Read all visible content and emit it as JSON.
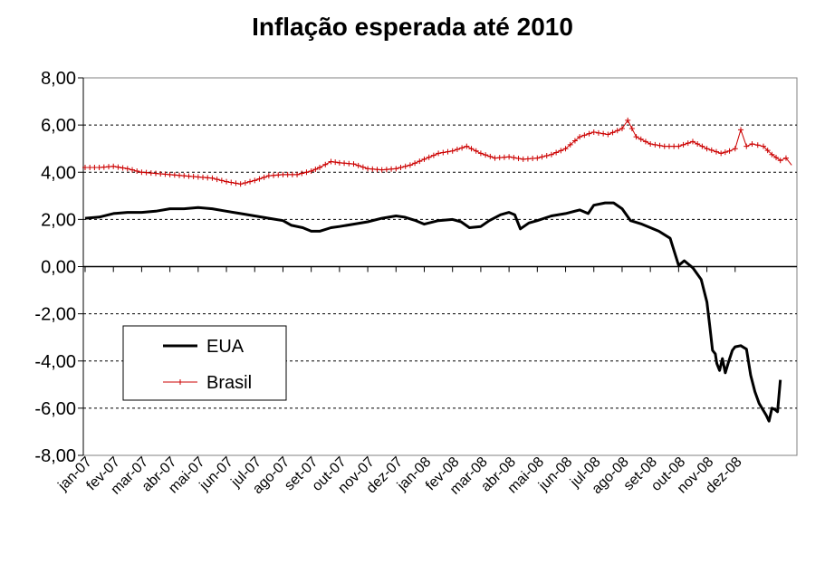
{
  "chart_data": {
    "type": "line",
    "title": "Inflação esperada até 2010",
    "xlabel": "",
    "ylabel": "",
    "ylim": [
      -8,
      8
    ],
    "y_ticks": [
      "8,00",
      "6,00",
      "4,00",
      "2,00",
      "0,00",
      "-2,00",
      "-4,00",
      "-6,00",
      "-8,00"
    ],
    "categories": [
      "jan-07",
      "fev-07",
      "mar-07",
      "abr-07",
      "mai-07",
      "jun-07",
      "jul-07",
      "ago-07",
      "set-07",
      "out-07",
      "nov-07",
      "dez-07",
      "jan-08",
      "fev-08",
      "mar-08",
      "abr-08",
      "mai-08",
      "jun-08",
      "jul-08",
      "ago-08",
      "set-08",
      "out-08",
      "nov-08",
      "dez-08"
    ],
    "grid": "horizontal dashed",
    "legend_position": "lower-left inside plot",
    "series": [
      {
        "name": "EUA",
        "color": "#000000",
        "style": "solid thick line",
        "points": [
          [
            0,
            2.05
          ],
          [
            0.5,
            2.1
          ],
          [
            1,
            2.25
          ],
          [
            1.5,
            2.3
          ],
          [
            2,
            2.3
          ],
          [
            2.5,
            2.35
          ],
          [
            3,
            2.45
          ],
          [
            3.5,
            2.45
          ],
          [
            4,
            2.5
          ],
          [
            4.5,
            2.45
          ],
          [
            5,
            2.35
          ],
          [
            5.5,
            2.25
          ],
          [
            6,
            2.15
          ],
          [
            6.5,
            2.05
          ],
          [
            7,
            1.95
          ],
          [
            7.3,
            1.75
          ],
          [
            7.7,
            1.65
          ],
          [
            8,
            1.5
          ],
          [
            8.3,
            1.5
          ],
          [
            8.7,
            1.65
          ],
          [
            9,
            1.7
          ],
          [
            9.5,
            1.8
          ],
          [
            10,
            1.9
          ],
          [
            10.5,
            2.05
          ],
          [
            11,
            2.15
          ],
          [
            11.3,
            2.1
          ],
          [
            11.7,
            1.95
          ],
          [
            12,
            1.8
          ],
          [
            12.5,
            1.95
          ],
          [
            13,
            2.0
          ],
          [
            13.3,
            1.9
          ],
          [
            13.6,
            1.65
          ],
          [
            14,
            1.7
          ],
          [
            14.3,
            1.95
          ],
          [
            14.7,
            2.2
          ],
          [
            15,
            2.3
          ],
          [
            15.2,
            2.2
          ],
          [
            15.4,
            1.6
          ],
          [
            15.7,
            1.85
          ],
          [
            16,
            1.95
          ],
          [
            16.5,
            2.15
          ],
          [
            17,
            2.25
          ],
          [
            17.5,
            2.4
          ],
          [
            17.8,
            2.25
          ],
          [
            18,
            2.6
          ],
          [
            18.4,
            2.7
          ],
          [
            18.7,
            2.7
          ],
          [
            19,
            2.45
          ],
          [
            19.3,
            1.95
          ],
          [
            19.7,
            1.8
          ],
          [
            20,
            1.65
          ],
          [
            20.3,
            1.5
          ],
          [
            20.7,
            1.2
          ],
          [
            21,
            0.05
          ],
          [
            21.2,
            0.25
          ],
          [
            21.5,
            -0.05
          ],
          [
            21.8,
            -0.55
          ],
          [
            22,
            -1.5
          ],
          [
            22.1,
            -2.5
          ],
          [
            22.2,
            -3.55
          ],
          [
            22.3,
            -3.7
          ],
          [
            22.35,
            -4.1
          ],
          [
            22.45,
            -4.4
          ],
          [
            22.55,
            -3.9
          ],
          [
            22.65,
            -4.5
          ],
          [
            22.75,
            -4.1
          ],
          [
            22.9,
            -3.55
          ],
          [
            23,
            -3.4
          ],
          [
            23.2,
            -3.35
          ],
          [
            23.4,
            -3.5
          ],
          [
            23.55,
            -4.6
          ],
          [
            23.7,
            -5.3
          ],
          [
            23.85,
            -5.8
          ],
          [
            24,
            -6.1
          ],
          [
            24.1,
            -6.3
          ],
          [
            24.2,
            -6.55
          ],
          [
            24.3,
            -6.0
          ],
          [
            24.4,
            -6.05
          ],
          [
            24.5,
            -6.15
          ],
          [
            24.6,
            -4.8
          ]
        ]
      },
      {
        "name": "Brasil",
        "color": "#cc0000",
        "style": "thin line with + markers",
        "points": [
          [
            0,
            4.2
          ],
          [
            0.5,
            4.2
          ],
          [
            1,
            4.25
          ],
          [
            1.5,
            4.15
          ],
          [
            2,
            4.0
          ],
          [
            2.5,
            3.95
          ],
          [
            3,
            3.9
          ],
          [
            3.5,
            3.85
          ],
          [
            4,
            3.8
          ],
          [
            4.5,
            3.75
          ],
          [
            5,
            3.6
          ],
          [
            5.5,
            3.5
          ],
          [
            6,
            3.65
          ],
          [
            6.5,
            3.85
          ],
          [
            7,
            3.9
          ],
          [
            7.5,
            3.9
          ],
          [
            8,
            4.05
          ],
          [
            8.3,
            4.2
          ],
          [
            8.7,
            4.45
          ],
          [
            9,
            4.4
          ],
          [
            9.5,
            4.35
          ],
          [
            10,
            4.15
          ],
          [
            10.5,
            4.1
          ],
          [
            11,
            4.15
          ],
          [
            11.5,
            4.3
          ],
          [
            12,
            4.55
          ],
          [
            12.5,
            4.8
          ],
          [
            13,
            4.9
          ],
          [
            13.5,
            5.1
          ],
          [
            14,
            4.8
          ],
          [
            14.5,
            4.6
          ],
          [
            15,
            4.65
          ],
          [
            15.5,
            4.55
          ],
          [
            16,
            4.6
          ],
          [
            16.5,
            4.75
          ],
          [
            17,
            5.0
          ],
          [
            17.5,
            5.5
          ],
          [
            18,
            5.7
          ],
          [
            18.5,
            5.6
          ],
          [
            19,
            5.85
          ],
          [
            19.2,
            6.2
          ],
          [
            19.5,
            5.5
          ],
          [
            20,
            5.2
          ],
          [
            20.5,
            5.1
          ],
          [
            21,
            5.1
          ],
          [
            21.5,
            5.3
          ],
          [
            22,
            5.0
          ],
          [
            22.5,
            4.8
          ],
          [
            22.8,
            4.9
          ],
          [
            23,
            5.0
          ],
          [
            23.2,
            5.8
          ],
          [
            23.4,
            5.1
          ],
          [
            23.6,
            5.2
          ],
          [
            24,
            5.1
          ],
          [
            24.3,
            4.75
          ],
          [
            24.6,
            4.5
          ],
          [
            24.8,
            4.6
          ],
          [
            25,
            4.3
          ]
        ]
      }
    ]
  }
}
